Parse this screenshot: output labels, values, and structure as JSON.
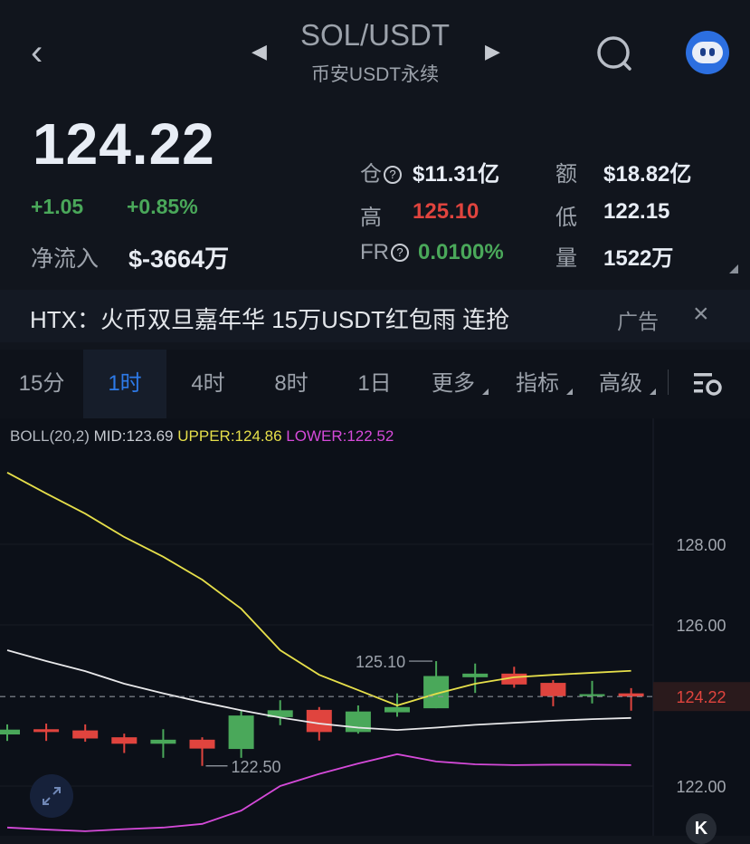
{
  "header": {
    "pair": "SOL/USDT",
    "subtitle": "币安USDT永续",
    "icons": [
      "back-chevron",
      "prev-triangle",
      "next-triangle",
      "search-icon",
      "avatar-bot"
    ]
  },
  "ticker": {
    "price": "124.22",
    "change": "+1.05",
    "change_pct": "+0.85%",
    "net_inflow_label": "净流入",
    "net_inflow": "$-3664万"
  },
  "stats": {
    "oi_label": "仓",
    "oi": "$11.31亿",
    "turnover_label": "额",
    "turnover": "$18.82亿",
    "high_label": "高",
    "high": "125.10",
    "low_label": "低",
    "low": "122.15",
    "fr_label": "FR",
    "fr": "0.0100%",
    "vol_label": "量",
    "vol": "1522万",
    "help_glyph": "?"
  },
  "ad": {
    "text": "HTX：火币双旦嘉年华  15万USDT红包雨 连抢",
    "tag": "广告",
    "close": "×"
  },
  "tabs": [
    {
      "label": "15分"
    },
    {
      "label": "1时",
      "active": true
    },
    {
      "label": "4时"
    },
    {
      "label": "8时"
    },
    {
      "label": "1日"
    },
    {
      "label": "更多"
    },
    {
      "label": "指标"
    },
    {
      "label": "高级"
    }
  ],
  "indicator": {
    "name": "BOLL(20,2)",
    "mid": "MID:123.69",
    "upper": "UPPER:124.86",
    "lower": "LOWER:122.52"
  },
  "colors": {
    "up": "#4aa85a",
    "down": "#e0443e",
    "upper": "#e6df4a",
    "mid": "#e8e8ea",
    "lower": "#d54ad9",
    "accent": "#2d7ae8"
  },
  "chart_data": {
    "type": "candlestick",
    "y_ticks": [
      "128.00",
      "126.00",
      "122.00"
    ],
    "last_price": "124.22",
    "high_marker": "125.10",
    "low_marker": "122.50",
    "candles": [
      {
        "o": 123.28,
        "h": 123.53,
        "l": 123.12,
        "c": 123.4
      },
      {
        "o": 123.41,
        "h": 123.55,
        "l": 123.12,
        "c": 123.34
      },
      {
        "o": 123.38,
        "h": 123.53,
        "l": 123.1,
        "c": 123.18
      },
      {
        "o": 123.21,
        "h": 123.3,
        "l": 122.82,
        "c": 123.05
      },
      {
        "o": 123.05,
        "h": 123.41,
        "l": 122.7,
        "c": 123.15
      },
      {
        "o": 123.15,
        "h": 123.21,
        "l": 122.5,
        "c": 122.93
      },
      {
        "o": 122.92,
        "h": 123.87,
        "l": 122.7,
        "c": 123.75
      },
      {
        "o": 123.71,
        "h": 124.13,
        "l": 123.51,
        "c": 123.88
      },
      {
        "o": 123.89,
        "h": 123.96,
        "l": 123.13,
        "c": 123.34
      },
      {
        "o": 123.34,
        "h": 124.0,
        "l": 123.3,
        "c": 123.85
      },
      {
        "o": 123.83,
        "h": 124.3,
        "l": 123.72,
        "c": 123.96
      },
      {
        "o": 123.93,
        "h": 125.1,
        "l": 123.93,
        "c": 124.73
      },
      {
        "o": 124.7,
        "h": 125.04,
        "l": 124.31,
        "c": 124.79
      },
      {
        "o": 124.79,
        "h": 124.96,
        "l": 124.44,
        "c": 124.52
      },
      {
        "o": 124.56,
        "h": 124.63,
        "l": 123.98,
        "c": 124.23
      },
      {
        "o": 124.23,
        "h": 124.61,
        "l": 124.05,
        "c": 124.28
      },
      {
        "o": 124.3,
        "h": 124.43,
        "l": 123.87,
        "c": 124.22
      }
    ],
    "upper": [
      129.78,
      129.26,
      128.76,
      128.18,
      127.69,
      127.12,
      126.4,
      125.37,
      124.76,
      124.38,
      124.0,
      124.29,
      124.54,
      124.7,
      124.76,
      124.81,
      124.86
    ],
    "mid": [
      125.37,
      125.1,
      124.85,
      124.54,
      124.3,
      124.08,
      123.88,
      123.7,
      123.55,
      123.45,
      123.39,
      123.45,
      123.52,
      123.57,
      123.62,
      123.66,
      123.69
    ],
    "lower": [
      120.97,
      120.92,
      120.88,
      120.93,
      120.97,
      121.06,
      121.39,
      122.0,
      122.3,
      122.56,
      122.79,
      122.61,
      122.54,
      122.52,
      122.53,
      122.53,
      122.52
    ]
  }
}
